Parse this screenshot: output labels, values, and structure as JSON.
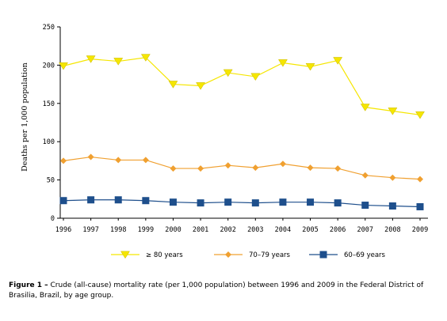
{
  "chart_data": {
    "type": "line",
    "x": [
      1996,
      1997,
      1998,
      1999,
      2000,
      2001,
      2002,
      2003,
      2004,
      2005,
      2006,
      2007,
      2008,
      2009
    ],
    "ylabel": "Deaths per 1,000 population",
    "xlabel": "",
    "ylim": [
      0,
      250
    ],
    "yticks": [
      0,
      50,
      100,
      150,
      200,
      250
    ],
    "grid": false,
    "legend_position": "bottom",
    "series": [
      {
        "name": "≥ 80 years",
        "color": "#f5e600",
        "marker": "triangle-down",
        "values": [
          199,
          208,
          205,
          210,
          175,
          173,
          190,
          185,
          203,
          198,
          206,
          145,
          140,
          135
        ]
      },
      {
        "name": "70–79 years",
        "color": "#f0a030",
        "marker": "diamond",
        "values": [
          75,
          80,
          76,
          76,
          65,
          65,
          69,
          66,
          71,
          66,
          65,
          56,
          53,
          51
        ]
      },
      {
        "name": "60–69 years",
        "color": "#1e4f8c",
        "marker": "square",
        "values": [
          23,
          24,
          24,
          23,
          21,
          20,
          21,
          20,
          21,
          21,
          20,
          17,
          16,
          15
        ]
      }
    ]
  },
  "caption": {
    "figure_label": "Figure 1 –",
    "text": " Crude (all-cause) mortality rate (per 1,000 population) between 1996 and 2009 in the Federal District of Brasilia, Brazil, by age group."
  }
}
